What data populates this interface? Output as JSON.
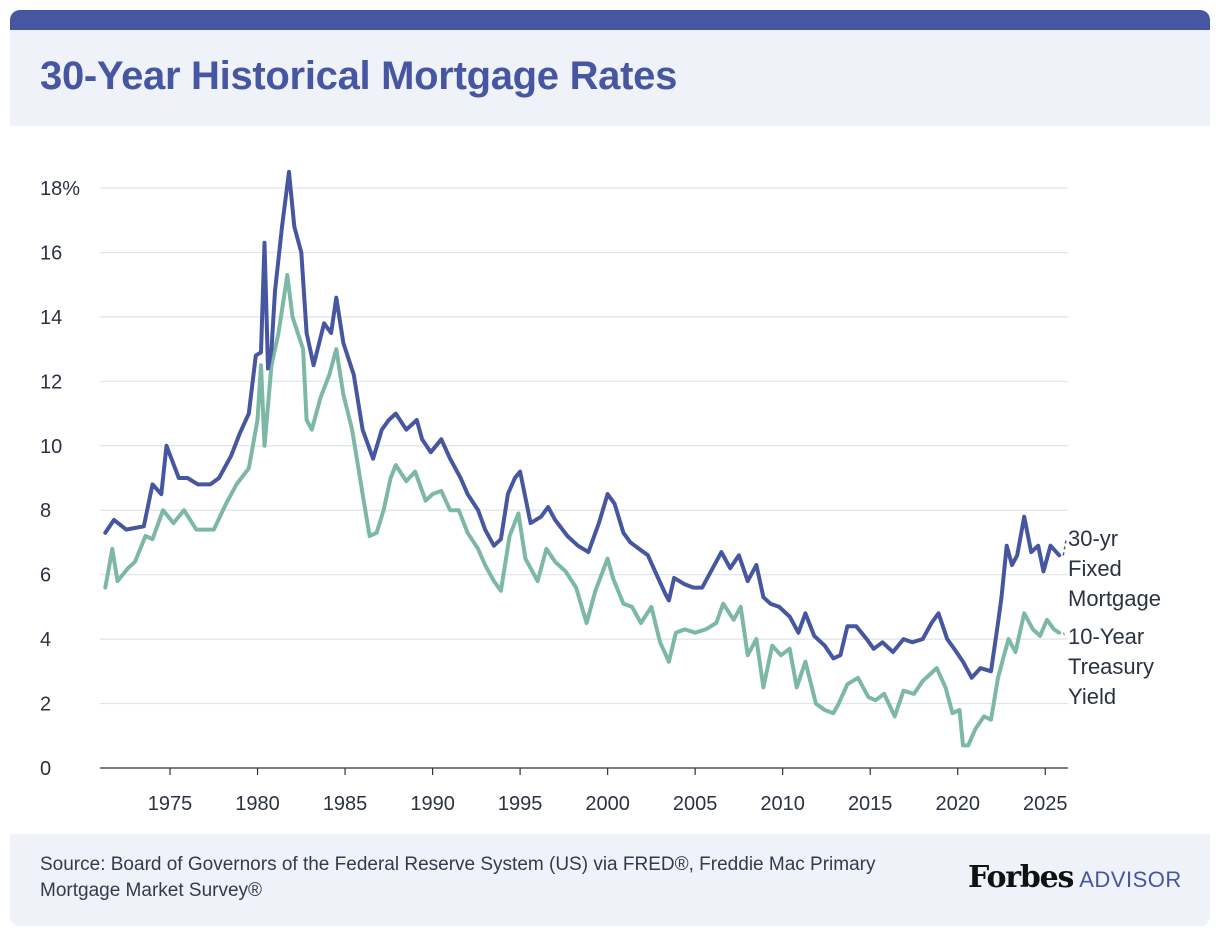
{
  "header": {
    "title": "30-Year Historical Mortgage Rates"
  },
  "footer": {
    "source": "Source: Board of Governors of the Federal Reserve System (US) via FRED®, Freddie Mac Primary Mortgage Market Survey®",
    "brand_name": "Forbes",
    "brand_suffix": "ADVISOR"
  },
  "colors": {
    "mortgage": "#4656a1",
    "treasury": "#7db8a6",
    "grid": "#dfe3ea",
    "accent": "#4656a1"
  },
  "chart_data": {
    "type": "line",
    "title": "30-Year Historical Mortgage Rates",
    "xlabel": "",
    "ylabel": "",
    "xlim": [
      1971,
      2026.3
    ],
    "ylim": [
      0,
      18
    ],
    "x_ticks": [
      1975,
      1980,
      1985,
      1990,
      1995,
      2000,
      2005,
      2010,
      2015,
      2020,
      2025
    ],
    "y_ticks": [
      0,
      2,
      4,
      6,
      8,
      10,
      12,
      14,
      16,
      18
    ],
    "y_tick_labels": [
      "0",
      "2",
      "4",
      "6",
      "8",
      "10",
      "12",
      "14",
      "16",
      "18%"
    ],
    "grid": true,
    "series": [
      {
        "name": "30-yr Fixed Mortgage",
        "label_lines": [
          "30-yr",
          "Fixed",
          "Mortgage"
        ],
        "x": [
          1971.3,
          1971.8,
          1972.5,
          1973.5,
          1974.0,
          1974.5,
          1974.8,
          1975.5,
          1976.0,
          1976.6,
          1977.3,
          1977.8,
          1978.5,
          1979.0,
          1979.5,
          1979.9,
          1980.2,
          1980.4,
          1980.6,
          1980.8,
          1981.0,
          1981.4,
          1981.8,
          1982.1,
          1982.5,
          1982.8,
          1983.2,
          1983.8,
          1984.2,
          1984.5,
          1984.9,
          1985.5,
          1986.0,
          1986.6,
          1987.1,
          1987.5,
          1987.9,
          1988.5,
          1989.1,
          1989.4,
          1989.9,
          1990.5,
          1991.0,
          1991.6,
          1992.0,
          1992.6,
          1993.0,
          1993.5,
          1993.9,
          1994.3,
          1994.7,
          1995.0,
          1995.6,
          1996.2,
          1996.6,
          1997.0,
          1997.7,
          1998.3,
          1998.9,
          1999.5,
          2000.0,
          2000.4,
          2000.9,
          2001.3,
          2001.8,
          2002.3,
          2002.8,
          2003.3,
          2003.5,
          2003.8,
          2004.4,
          2004.9,
          2005.4,
          2006.0,
          2006.5,
          2007.0,
          2007.5,
          2008.0,
          2008.5,
          2008.9,
          2009.3,
          2009.8,
          2010.4,
          2010.9,
          2011.3,
          2011.8,
          2012.4,
          2012.9,
          2013.3,
          2013.7,
          2014.2,
          2014.8,
          2015.2,
          2015.7,
          2016.3,
          2016.9,
          2017.4,
          2018.0,
          2018.5,
          2018.9,
          2019.4,
          2019.8,
          2020.3,
          2020.8,
          2021.3,
          2021.9,
          2022.3,
          2022.5,
          2022.8,
          2023.1,
          2023.4,
          2023.8,
          2024.2,
          2024.6,
          2024.9,
          2025.3,
          2025.8
        ],
        "y": [
          7.3,
          7.7,
          7.4,
          7.5,
          8.8,
          8.5,
          10.0,
          9.0,
          9.0,
          8.8,
          8.8,
          9.0,
          9.7,
          10.4,
          11.0,
          12.8,
          12.9,
          16.3,
          12.4,
          13.0,
          14.8,
          16.8,
          18.5,
          16.8,
          16.0,
          13.5,
          12.5,
          13.8,
          13.5,
          14.6,
          13.2,
          12.2,
          10.5,
          9.6,
          10.5,
          10.8,
          11.0,
          10.5,
          10.8,
          10.2,
          9.8,
          10.2,
          9.6,
          9.0,
          8.5,
          8.0,
          7.4,
          6.9,
          7.1,
          8.5,
          9.0,
          9.2,
          7.6,
          7.8,
          8.1,
          7.7,
          7.2,
          6.9,
          6.7,
          7.6,
          8.5,
          8.2,
          7.3,
          7.0,
          6.8,
          6.6,
          6.0,
          5.4,
          5.2,
          5.9,
          5.7,
          5.6,
          5.6,
          6.2,
          6.7,
          6.2,
          6.6,
          5.8,
          6.3,
          5.3,
          5.1,
          5.0,
          4.7,
          4.2,
          4.8,
          4.1,
          3.8,
          3.4,
          3.5,
          4.4,
          4.4,
          4.0,
          3.7,
          3.9,
          3.6,
          4.0,
          3.9,
          4.0,
          4.5,
          4.8,
          4.0,
          3.7,
          3.3,
          2.8,
          3.1,
          3.0,
          4.5,
          5.3,
          6.9,
          6.3,
          6.6,
          7.8,
          6.7,
          6.9,
          6.1,
          6.9,
          6.6
        ]
      },
      {
        "name": "10-Year Treasury Yield",
        "label_lines": [
          "10-Year",
          "Treasury",
          "Yield"
        ],
        "x": [
          1971.3,
          1971.7,
          1972.0,
          1972.6,
          1973.0,
          1973.6,
          1974.0,
          1974.6,
          1975.2,
          1975.8,
          1976.5,
          1977.0,
          1977.5,
          1978.2,
          1978.8,
          1979.5,
          1980.0,
          1980.2,
          1980.4,
          1980.8,
          1981.2,
          1981.7,
          1982.0,
          1982.6,
          1982.8,
          1983.1,
          1983.6,
          1984.1,
          1984.5,
          1984.9,
          1985.4,
          1986.0,
          1986.4,
          1986.8,
          1987.2,
          1987.6,
          1987.9,
          1988.5,
          1989.0,
          1989.6,
          1990.0,
          1990.5,
          1991.0,
          1991.5,
          1992.0,
          1992.6,
          1993.0,
          1993.5,
          1993.9,
          1994.4,
          1994.9,
          1995.3,
          1996.0,
          1996.5,
          1997.0,
          1997.6,
          1998.2,
          1998.8,
          1999.3,
          2000.0,
          2000.3,
          2000.9,
          2001.4,
          2001.9,
          2002.5,
          2003.0,
          2003.5,
          2003.9,
          2004.4,
          2005.0,
          2005.6,
          2006.2,
          2006.6,
          2007.2,
          2007.6,
          2008.0,
          2008.5,
          2008.9,
          2009.4,
          2009.9,
          2010.4,
          2010.8,
          2011.3,
          2011.9,
          2012.4,
          2012.9,
          2013.2,
          2013.7,
          2014.3,
          2014.9,
          2015.3,
          2015.8,
          2016.4,
          2016.9,
          2017.5,
          2018.0,
          2018.8,
          2019.3,
          2019.7,
          2020.1,
          2020.3,
          2020.6,
          2021.0,
          2021.5,
          2021.9,
          2022.3,
          2022.6,
          2022.9,
          2023.3,
          2023.8,
          2024.3,
          2024.7,
          2025.1,
          2025.5,
          2025.8
        ],
        "y": [
          5.6,
          6.8,
          5.8,
          6.2,
          6.4,
          7.2,
          7.1,
          8.0,
          7.6,
          8.0,
          7.4,
          7.4,
          7.4,
          8.2,
          8.8,
          9.3,
          10.8,
          12.5,
          10.0,
          12.5,
          13.5,
          15.3,
          14.0,
          13.0,
          10.8,
          10.5,
          11.5,
          12.2,
          13.0,
          11.6,
          10.5,
          8.5,
          7.2,
          7.3,
          8.0,
          9.0,
          9.4,
          8.9,
          9.2,
          8.3,
          8.5,
          8.6,
          8.0,
          8.0,
          7.3,
          6.8,
          6.3,
          5.8,
          5.5,
          7.2,
          7.9,
          6.5,
          5.8,
          6.8,
          6.4,
          6.1,
          5.6,
          4.5,
          5.5,
          6.5,
          5.9,
          5.1,
          5.0,
          4.5,
          5.0,
          3.9,
          3.3,
          4.2,
          4.3,
          4.2,
          4.3,
          4.5,
          5.1,
          4.6,
          5.0,
          3.5,
          4.0,
          2.5,
          3.8,
          3.5,
          3.7,
          2.5,
          3.3,
          2.0,
          1.8,
          1.7,
          2.0,
          2.6,
          2.8,
          2.2,
          2.1,
          2.3,
          1.6,
          2.4,
          2.3,
          2.7,
          3.1,
          2.5,
          1.7,
          1.8,
          0.7,
          0.7,
          1.2,
          1.6,
          1.5,
          2.8,
          3.4,
          4.0,
          3.6,
          4.8,
          4.3,
          4.1,
          4.6,
          4.3,
          4.2
        ]
      }
    ]
  }
}
